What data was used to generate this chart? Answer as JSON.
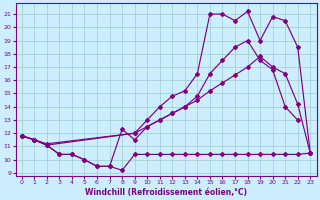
{
  "xlabel": "Windchill (Refroidissement éolien,°C)",
  "bg_color": "#cceeff",
  "line_color": "#800080",
  "grid_color": "#99cccc",
  "xlim": [
    -0.5,
    23.5
  ],
  "ylim": [
    8.8,
    21.8
  ],
  "yticks": [
    9,
    10,
    11,
    12,
    13,
    14,
    15,
    16,
    17,
    18,
    19,
    20,
    21
  ],
  "xticks": [
    0,
    1,
    2,
    3,
    4,
    5,
    6,
    7,
    8,
    9,
    10,
    11,
    12,
    13,
    14,
    15,
    16,
    17,
    18,
    19,
    20,
    21,
    22,
    23
  ],
  "s1_x": [
    0,
    1,
    2,
    3,
    4,
    5,
    6,
    7,
    8,
    9,
    10,
    11,
    12,
    13,
    14,
    15,
    16,
    17,
    18,
    19,
    20,
    21,
    22,
    23
  ],
  "s1_y": [
    11.8,
    11.5,
    11.1,
    10.4,
    10.4,
    10.0,
    9.5,
    9.5,
    9.2,
    10.4,
    10.4,
    10.4,
    10.4,
    10.4,
    10.4,
    10.4,
    10.4,
    10.4,
    10.4,
    10.4,
    10.4,
    10.4,
    10.4,
    10.5
  ],
  "s2_x": [
    0,
    1,
    2,
    3,
    4,
    5,
    6,
    7,
    8,
    9,
    10,
    11,
    12,
    13,
    14,
    15,
    16,
    17,
    18,
    19,
    20,
    21,
    22
  ],
  "s2_y": [
    11.8,
    11.5,
    11.1,
    10.4,
    10.4,
    10.0,
    9.5,
    9.5,
    12.3,
    11.5,
    12.5,
    13.0,
    13.5,
    14.0,
    14.8,
    16.5,
    17.5,
    18.5,
    19.0,
    17.5,
    16.8,
    14.0,
    13.0
  ],
  "s3_x": [
    0,
    1,
    2,
    9,
    10,
    11,
    12,
    13,
    14,
    15,
    16,
    17,
    18,
    19,
    20,
    21,
    22,
    23
  ],
  "s3_y": [
    11.8,
    11.5,
    11.2,
    12.0,
    12.5,
    13.0,
    13.5,
    14.0,
    14.5,
    15.2,
    15.8,
    16.4,
    17.0,
    17.8,
    17.0,
    16.5,
    14.2,
    10.5
  ],
  "s4_x": [
    0,
    1,
    2,
    9,
    10,
    11,
    12,
    13,
    14,
    15,
    16,
    17,
    18,
    19,
    20,
    21,
    22,
    23
  ],
  "s4_y": [
    11.8,
    11.5,
    11.1,
    12.0,
    13.0,
    14.0,
    14.8,
    15.2,
    16.5,
    21.0,
    21.0,
    20.5,
    21.2,
    19.0,
    20.8,
    20.5,
    18.5,
    10.5
  ]
}
